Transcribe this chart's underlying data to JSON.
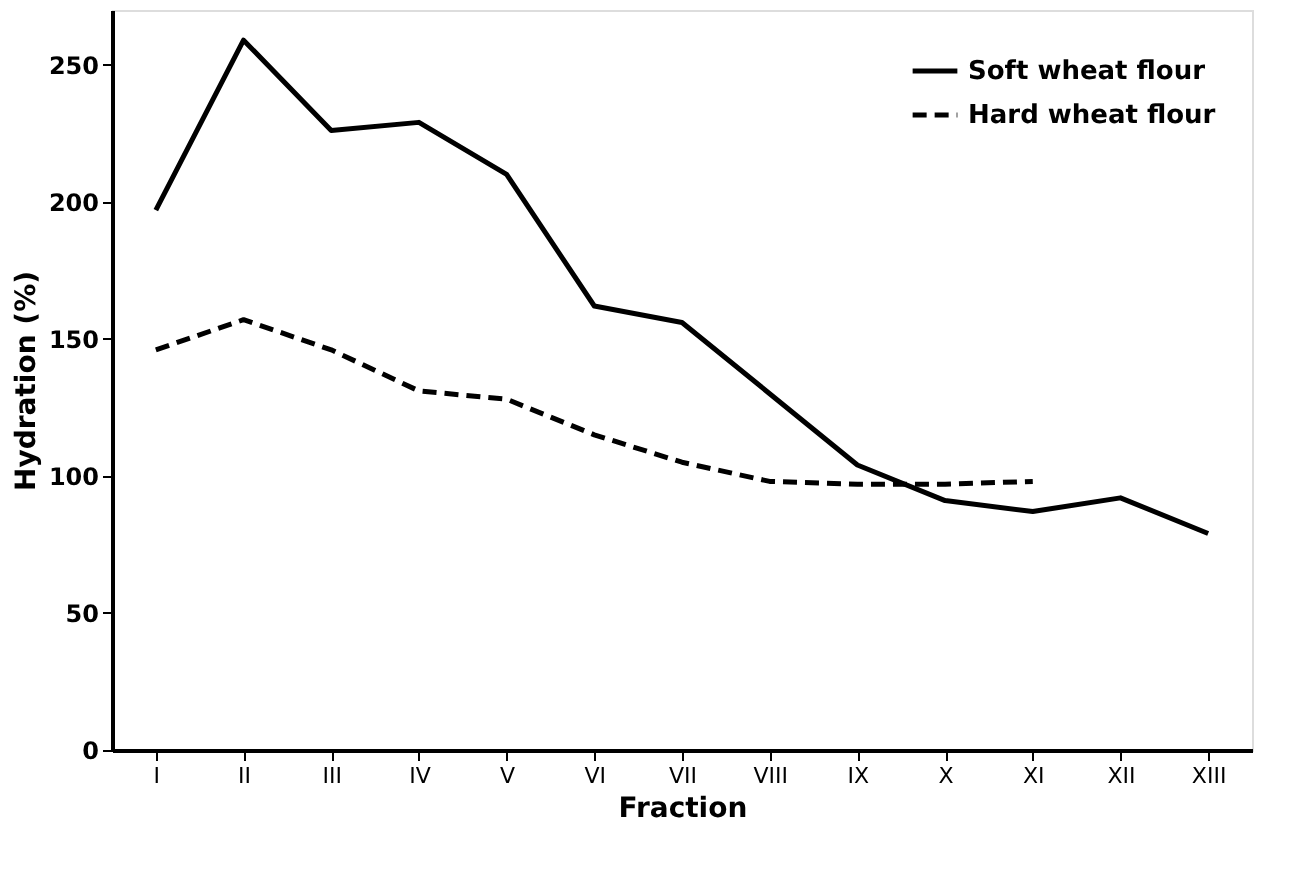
{
  "chart_data": {
    "type": "line",
    "xlabel": "Fraction",
    "ylabel": "Hydration (%)",
    "categories": [
      "I",
      "II",
      "III",
      "IV",
      "V",
      "VI",
      "VII",
      "VIII",
      "IX",
      "X",
      "XI",
      "XII",
      "XIII"
    ],
    "series": [
      {
        "name": "Soft wheat flour",
        "color": "#000000",
        "line_style": "solid",
        "values": [
          197,
          259,
          226,
          229,
          210,
          162,
          156,
          130,
          104,
          91,
          87,
          92,
          79
        ]
      },
      {
        "name": "Hard wheat flour",
        "color": "#000000",
        "line_style": "dashed",
        "values": [
          146,
          157,
          146,
          131,
          128,
          115,
          105,
          98,
          97,
          97,
          98,
          null,
          null
        ]
      }
    ],
    "ylim": [
      0,
      270
    ],
    "yticks": [
      0,
      50,
      100,
      150,
      200,
      250
    ],
    "grid": false,
    "legend": "top right"
  }
}
